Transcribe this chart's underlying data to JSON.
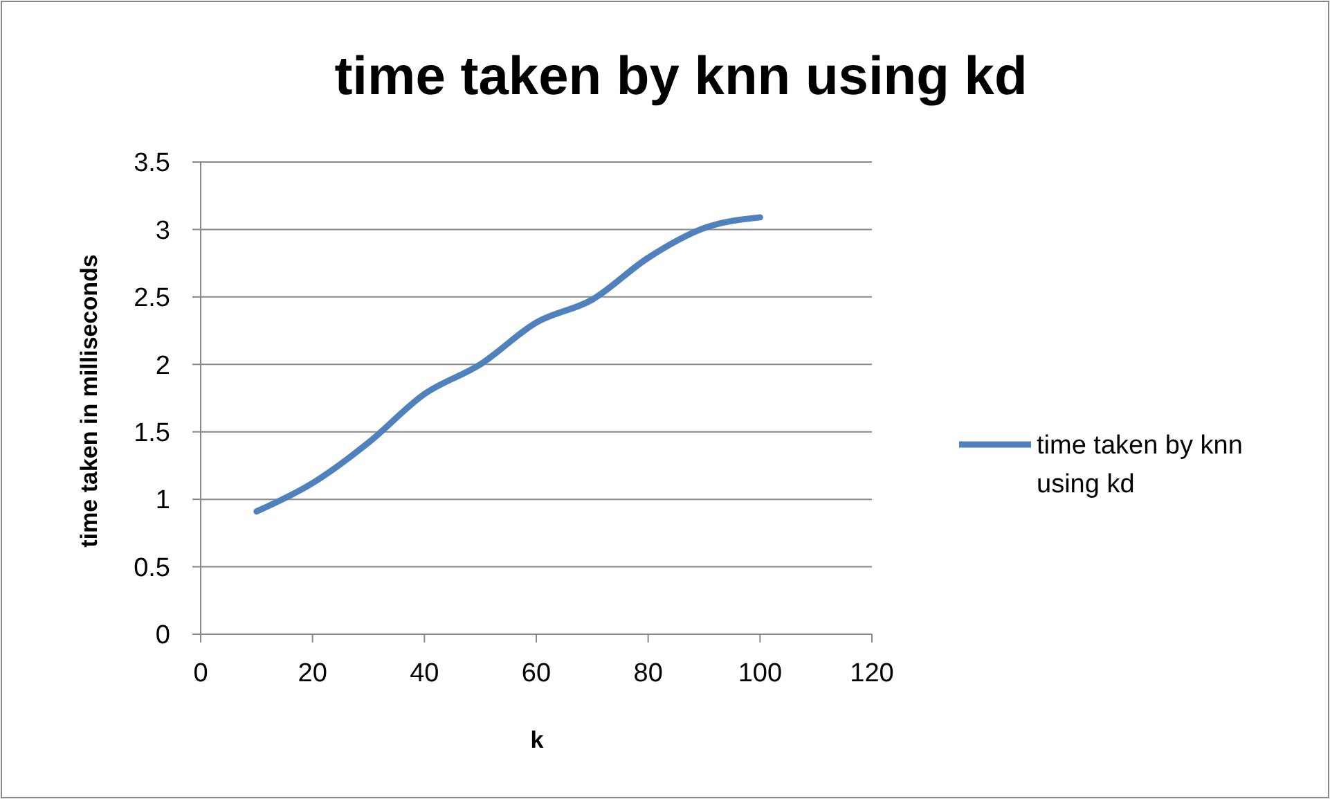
{
  "chart_data": {
    "type": "line",
    "title": "time taken by knn using kd",
    "xlabel": "k",
    "ylabel": "time taken in milliseconds",
    "x": [
      10,
      20,
      30,
      40,
      50,
      60,
      70,
      80,
      90,
      100
    ],
    "series": [
      {
        "name": "time taken by knn using kd",
        "color": "#4f81bd",
        "values": [
          0.91,
          1.12,
          1.42,
          1.78,
          2.0,
          2.31,
          2.48,
          2.79,
          3.01,
          3.09
        ]
      }
    ],
    "xlim": [
      0,
      120
    ],
    "xticks": [
      0,
      20,
      40,
      60,
      80,
      100,
      120
    ],
    "ylim": [
      0,
      3.5
    ],
    "yticks": [
      0,
      0.5,
      1,
      1.5,
      2,
      2.5,
      3,
      3.5
    ],
    "grid": "y",
    "legend": "right",
    "marker": "none",
    "line_style": "solid"
  }
}
